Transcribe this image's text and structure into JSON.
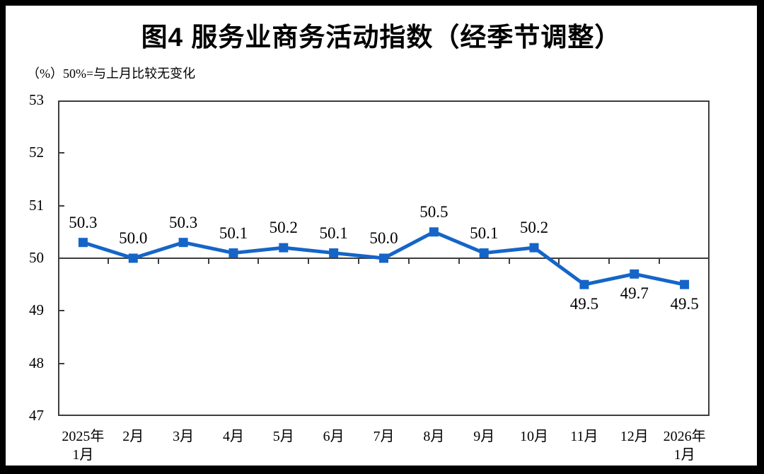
{
  "header": {
    "title": "图4 服务业商务活动指数（经季节调整）",
    "subtitle": "（%）50%=与上月比较无变化"
  },
  "chart_data": {
    "type": "line",
    "title": "图4 服务业商务活动指数（经季节调整）",
    "unit_note": "（%）50%=与上月比较无变化",
    "categories": [
      "2025年\n1月",
      "2月",
      "3月",
      "4月",
      "5月",
      "6月",
      "7月",
      "8月",
      "9月",
      "10月",
      "11月",
      "12月",
      "2026年\n1月"
    ],
    "values": [
      50.3,
      50.0,
      50.3,
      50.1,
      50.2,
      50.1,
      50.0,
      50.5,
      50.1,
      50.2,
      49.5,
      49.7,
      49.5
    ],
    "data_labels": [
      "50.3",
      "50.0",
      "50.3",
      "50.1",
      "50.2",
      "50.1",
      "50.0",
      "50.5",
      "50.1",
      "50.2",
      "49.5",
      "49.7",
      "49.5"
    ],
    "xlabel": "",
    "ylabel": "",
    "ylim": [
      47,
      53
    ],
    "yticks": [
      47,
      48,
      49,
      50,
      51,
      52,
      53
    ],
    "baseline": 50,
    "grid": false,
    "legend": "none",
    "line_color": "#1565c8",
    "marker": "square",
    "axis_color": "#3d3d3d",
    "text_color": "#000000"
  }
}
